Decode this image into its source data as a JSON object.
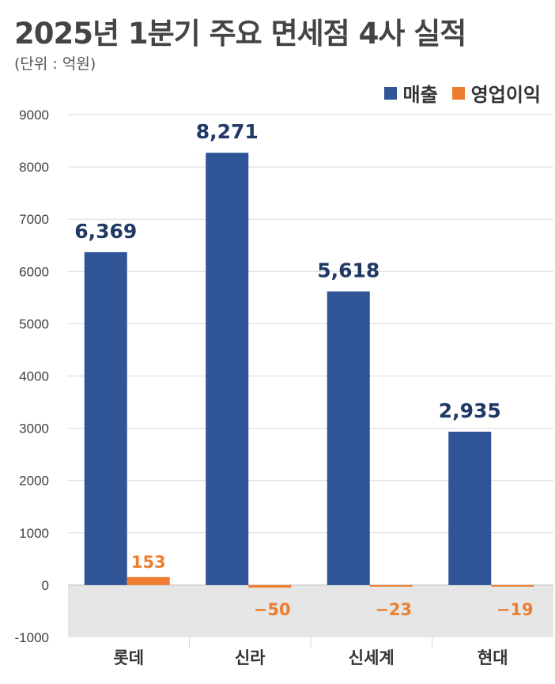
{
  "title": "2025년 1분기 주요 면세점 4사 실적",
  "unit_note": "(단위 : 억원)",
  "colors": {
    "sales": "#2f5597",
    "profit": "#ed7d31",
    "negative_band": "#e6e6e6"
  },
  "chart_data": {
    "type": "bar",
    "categories": [
      "롯데",
      "신라",
      "신세계",
      "현대"
    ],
    "series": [
      {
        "name": "매출",
        "values": [
          6369,
          8271,
          5618,
          2935
        ],
        "labels": [
          "6,369",
          "8,271",
          "5,618",
          "2,935"
        ]
      },
      {
        "name": "영업이익",
        "values": [
          153,
          -50,
          -23,
          -19
        ],
        "labels": [
          "153",
          "−50",
          "−23",
          "−19"
        ]
      }
    ],
    "ylim": [
      -1000,
      9000
    ],
    "yticks": [
      9000,
      8000,
      7000,
      6000,
      5000,
      4000,
      3000,
      2000,
      1000,
      0,
      -1000
    ],
    "grid": true,
    "legend": "top-right"
  }
}
